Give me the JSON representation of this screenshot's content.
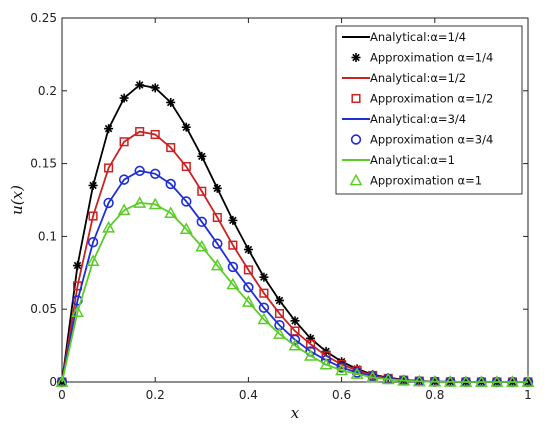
{
  "chart_data": {
    "type": "line",
    "title": "",
    "xlabel": "x",
    "ylabel": "u(x)",
    "xlim": [
      0,
      1
    ],
    "ylim": [
      0,
      0.25
    ],
    "x_ticks": [
      "0",
      "0.2",
      "0.4",
      "0.6",
      "0.8",
      "1"
    ],
    "y_ticks": [
      "0",
      "0.05",
      "0.1",
      "0.15",
      "0.2",
      "0.25"
    ],
    "grid": false,
    "legend_placement": "top-right",
    "x": [
      0,
      0.0333,
      0.0667,
      0.1,
      0.1333,
      0.1667,
      0.2,
      0.2333,
      0.2667,
      0.3,
      0.3333,
      0.3667,
      0.4,
      0.4333,
      0.4667,
      0.5,
      0.5333,
      0.5667,
      0.6,
      0.6333,
      0.6667,
      0.7,
      0.7333,
      0.7667,
      0.8,
      0.8333,
      0.8667,
      0.9,
      0.9333,
      0.9667,
      1.0
    ],
    "series": [
      {
        "name": "Analytical:α=1/4",
        "kind": "line",
        "color": "#000000",
        "values": [
          0,
          0.08,
          0.135,
          0.174,
          0.195,
          0.204,
          0.202,
          0.192,
          0.175,
          0.155,
          0.133,
          0.111,
          0.091,
          0.072,
          0.056,
          0.042,
          0.03,
          0.021,
          0.014,
          0.009,
          0.005,
          0.003,
          0.0015,
          0.0007,
          0.0003,
          0.0001,
          4e-05,
          1e-05,
          0,
          0,
          0
        ]
      },
      {
        "name": "Approximation α=1/4",
        "kind": "markers",
        "marker": "asterisk",
        "color": "#000000",
        "values": [
          0,
          0.08,
          0.135,
          0.174,
          0.195,
          0.204,
          0.202,
          0.192,
          0.175,
          0.155,
          0.133,
          0.111,
          0.091,
          0.072,
          0.056,
          0.042,
          0.03,
          0.021,
          0.014,
          0.009,
          0.005,
          0.003,
          0.0015,
          0.0007,
          0.0003,
          0.0001,
          4e-05,
          1e-05,
          0,
          0,
          0
        ]
      },
      {
        "name": "Analytical:α=1/2",
        "kind": "line",
        "color": "#cc2222",
        "values": [
          0,
          0.066,
          0.114,
          0.147,
          0.165,
          0.172,
          0.17,
          0.161,
          0.148,
          0.131,
          0.113,
          0.094,
          0.077,
          0.061,
          0.047,
          0.035,
          0.026,
          0.018,
          0.012,
          0.008,
          0.0045,
          0.0025,
          0.0013,
          0.0006,
          0.0003,
          0.0001,
          3e-05,
          1e-05,
          0,
          0,
          0
        ]
      },
      {
        "name": "Approximation α=1/2",
        "kind": "markers",
        "marker": "square",
        "color": "#cc2222",
        "values": [
          0,
          0.066,
          0.114,
          0.147,
          0.165,
          0.172,
          0.17,
          0.161,
          0.148,
          0.131,
          0.113,
          0.094,
          0.077,
          0.061,
          0.047,
          0.035,
          0.026,
          0.018,
          0.012,
          0.008,
          0.0045,
          0.0025,
          0.0013,
          0.0006,
          0.0003,
          0.0001,
          3e-05,
          1e-05,
          0,
          0,
          0
        ]
      },
      {
        "name": "Analytical:α=3/4",
        "kind": "line",
        "color": "#1f2ed6",
        "values": [
          0,
          0.056,
          0.096,
          0.123,
          0.139,
          0.145,
          0.143,
          0.136,
          0.124,
          0.11,
          0.095,
          0.079,
          0.065,
          0.051,
          0.039,
          0.029,
          0.021,
          0.015,
          0.01,
          0.0065,
          0.0038,
          0.0021,
          0.0011,
          0.0005,
          0.0002,
          0.0001,
          3e-05,
          1e-05,
          0,
          0,
          0
        ]
      },
      {
        "name": "Approximation α=3/4",
        "kind": "markers",
        "marker": "circle",
        "color": "#1f2ed6",
        "values": [
          0,
          0.056,
          0.096,
          0.123,
          0.139,
          0.145,
          0.143,
          0.136,
          0.124,
          0.11,
          0.095,
          0.079,
          0.065,
          0.051,
          0.039,
          0.029,
          0.021,
          0.015,
          0.01,
          0.0065,
          0.0038,
          0.0021,
          0.0011,
          0.0005,
          0.0002,
          0.0001,
          3e-05,
          1e-05,
          0,
          0,
          0
        ]
      },
      {
        "name": "Analytical:α=1",
        "kind": "line",
        "color": "#5ccc28",
        "values": [
          0,
          0.048,
          0.083,
          0.106,
          0.118,
          0.123,
          0.122,
          0.116,
          0.105,
          0.093,
          0.08,
          0.067,
          0.055,
          0.043,
          0.033,
          0.025,
          0.018,
          0.012,
          0.008,
          0.0055,
          0.0032,
          0.0018,
          0.0009,
          0.0004,
          0.0002,
          0.0001,
          2e-05,
          1e-05,
          0,
          0,
          0
        ]
      },
      {
        "name": "Approximation α=1",
        "kind": "markers",
        "marker": "triangle",
        "color": "#5ccc28",
        "values": [
          0,
          0.048,
          0.083,
          0.106,
          0.118,
          0.123,
          0.122,
          0.116,
          0.105,
          0.093,
          0.08,
          0.067,
          0.055,
          0.043,
          0.033,
          0.025,
          0.018,
          0.012,
          0.008,
          0.0055,
          0.0032,
          0.0018,
          0.0009,
          0.0004,
          0.0002,
          0.0001,
          2e-05,
          1e-05,
          0,
          0,
          0
        ]
      }
    ]
  }
}
